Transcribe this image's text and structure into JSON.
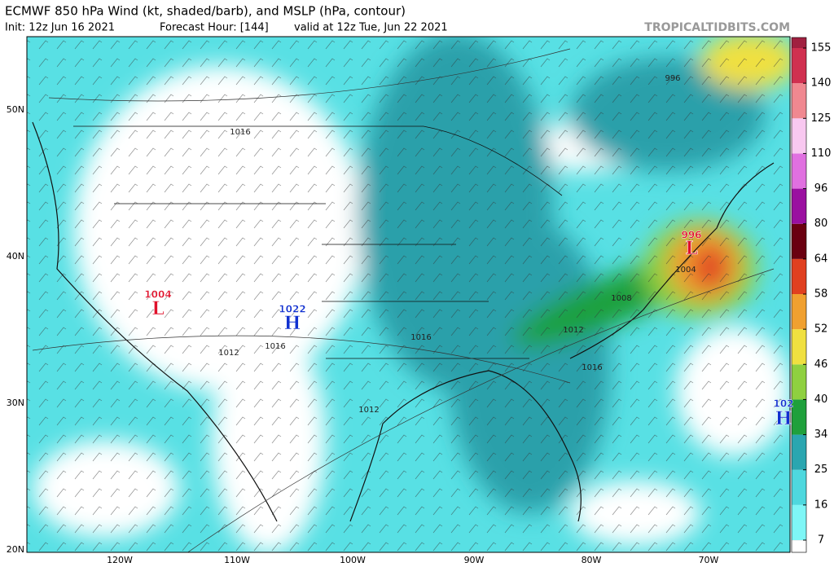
{
  "header": {
    "title": "ECMWF 850 hPa Wind (kt, shaded/barb), and MSLP (hPa, contour)",
    "init": "Init: 12z Jun 16 2021",
    "forecast_hour": "Forecast Hour: [144]",
    "valid": "valid at 12z Tue, Jun 22 2021",
    "watermark": "TROPICALTIDBITS.COM"
  },
  "map": {
    "lat_labels": [
      "50N",
      "40N",
      "30N",
      "20N"
    ],
    "lon_labels": [
      "120W",
      "110W",
      "100W",
      "90W",
      "80W",
      "70W"
    ],
    "contour_labels": [
      "1016",
      "996",
      "1016",
      "1012",
      "1016",
      "1012",
      "1008",
      "1012",
      "1016",
      "1004"
    ],
    "centers": [
      {
        "pressure": "1004",
        "symbol": "L"
      },
      {
        "pressure": "1022",
        "symbol": "H"
      },
      {
        "pressure": "996",
        "symbol": "L"
      },
      {
        "pressure": "102",
        "symbol": "H"
      }
    ]
  },
  "colorbar": {
    "ticks": [
      7,
      16,
      25,
      34,
      40,
      46,
      52,
      58,
      64,
      80,
      96,
      110,
      125,
      140,
      155
    ]
  }
}
